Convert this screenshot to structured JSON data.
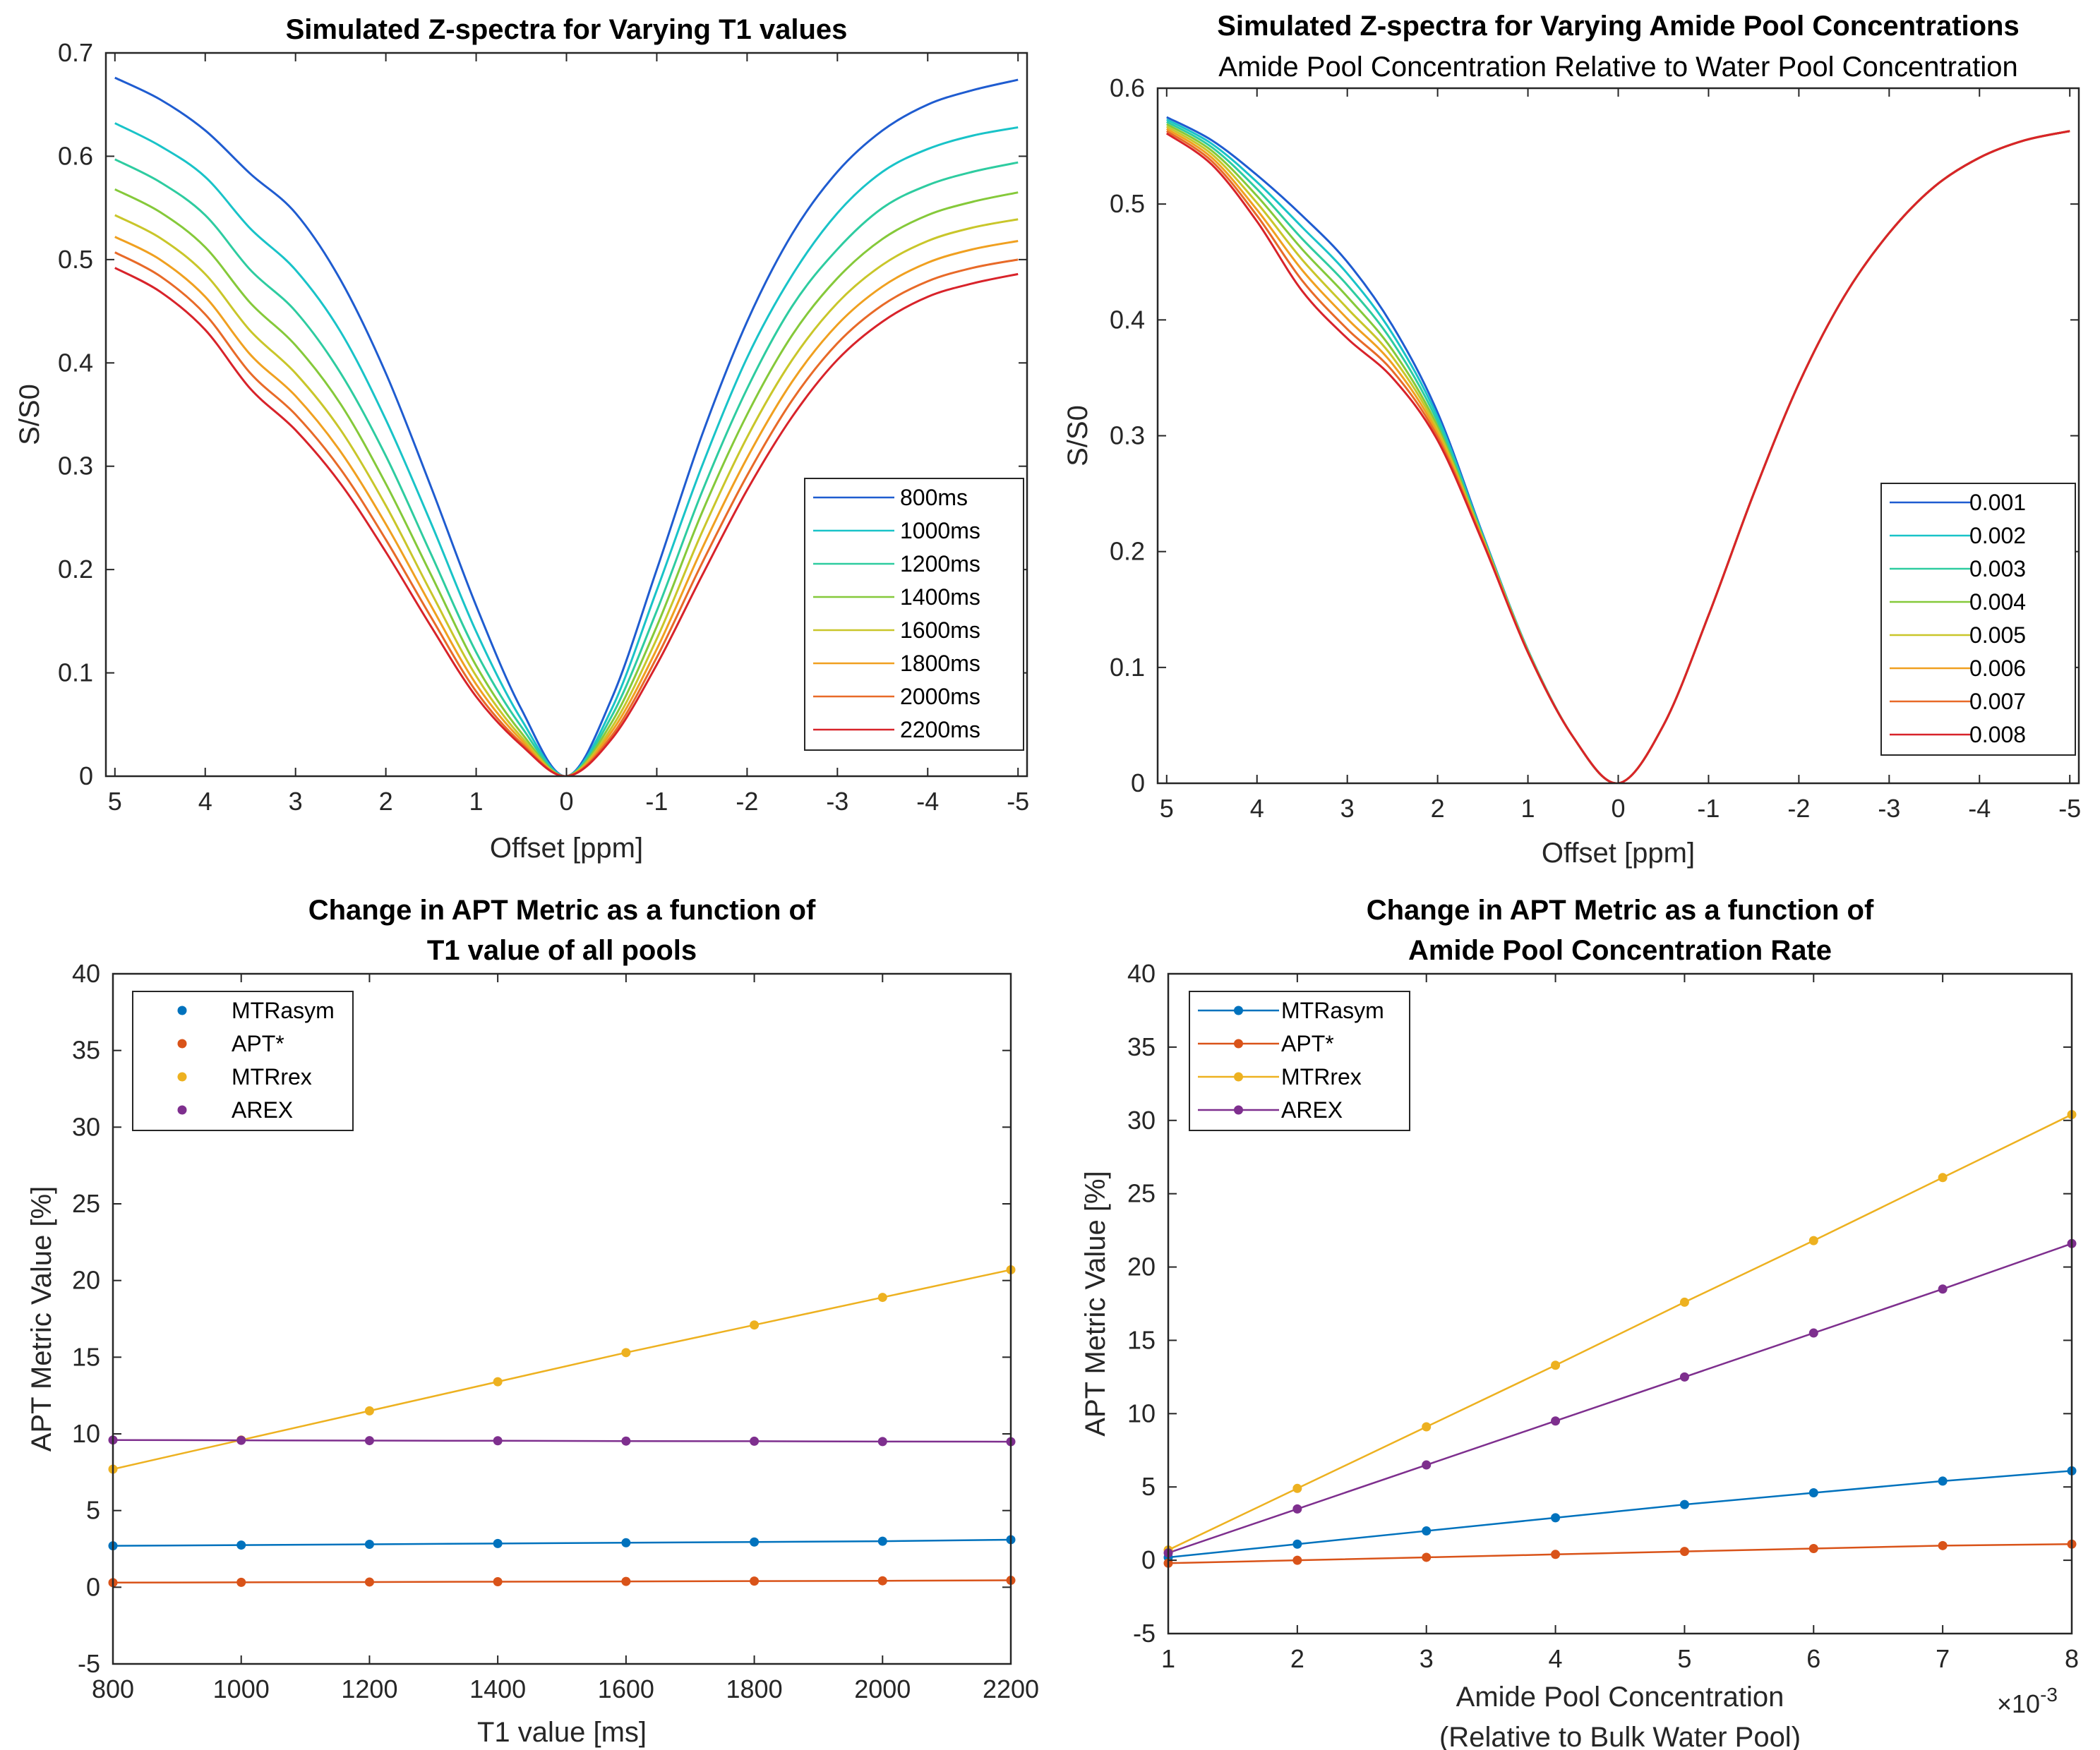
{
  "chart_data": [
    {
      "id": "p1",
      "type": "line",
      "title": "Simulated Z-spectra for Varying T1 values",
      "xlabel": "Offset [ppm]",
      "ylabel": "S/S0",
      "xlim": [
        5.1,
        -5.1
      ],
      "xticks": [
        5,
        4,
        3,
        2,
        1,
        0,
        -1,
        -2,
        -3,
        -4,
        -5
      ],
      "xtick_labels": [
        "5",
        "4",
        "3",
        "2",
        "1",
        "0",
        "-1",
        "-2",
        "-3",
        "-4",
        "-5"
      ],
      "ylim": [
        0,
        0.7
      ],
      "yticks": [
        0,
        0.1,
        0.2,
        0.3,
        0.4,
        0.5,
        0.6,
        0.7
      ],
      "ytick_labels": [
        "0",
        "0.1",
        "0.2",
        "0.3",
        "0.4",
        "0.5",
        "0.6",
        "0.7"
      ],
      "legend_position": "bottom-right",
      "x": [
        5.0,
        4.5,
        4.0,
        3.5,
        3.0,
        2.5,
        2.0,
        1.5,
        1.0,
        0.5,
        0.0,
        -0.5,
        -1.0,
        -1.5,
        -2.0,
        -2.5,
        -3.0,
        -3.5,
        -4.0,
        -4.5,
        -5.0
      ],
      "series": [
        {
          "name": "800ms",
          "color": "#1f5cd0",
          "values": [
            0.676,
            0.655,
            0.625,
            0.583,
            0.545,
            0.48,
            0.39,
            0.28,
            0.165,
            0.065,
            0.0,
            0.075,
            0.2,
            0.33,
            0.44,
            0.525,
            0.585,
            0.625,
            0.65,
            0.664,
            0.674
          ]
        },
        {
          "name": "1000ms",
          "color": "#19c3c8",
          "values": [
            0.632,
            0.61,
            0.58,
            0.53,
            0.49,
            0.43,
            0.345,
            0.245,
            0.14,
            0.055,
            0.0,
            0.065,
            0.18,
            0.3,
            0.405,
            0.485,
            0.545,
            0.585,
            0.607,
            0.62,
            0.628
          ]
        },
        {
          "name": "1200ms",
          "color": "#2ecca0",
          "values": [
            0.597,
            0.575,
            0.543,
            0.49,
            0.45,
            0.39,
            0.31,
            0.215,
            0.12,
            0.048,
            0.0,
            0.058,
            0.16,
            0.275,
            0.375,
            0.455,
            0.51,
            0.55,
            0.572,
            0.585,
            0.594
          ]
        },
        {
          "name": "1400ms",
          "color": "#85c93a",
          "values": [
            0.568,
            0.546,
            0.512,
            0.458,
            0.417,
            0.36,
            0.283,
            0.195,
            0.107,
            0.042,
            0.0,
            0.052,
            0.145,
            0.255,
            0.35,
            0.427,
            0.482,
            0.52,
            0.543,
            0.556,
            0.565
          ]
        },
        {
          "name": "1600ms",
          "color": "#c9c62a",
          "values": [
            0.543,
            0.521,
            0.486,
            0.431,
            0.39,
            0.335,
            0.262,
            0.178,
            0.097,
            0.038,
            0.0,
            0.047,
            0.133,
            0.236,
            0.328,
            0.403,
            0.458,
            0.495,
            0.518,
            0.531,
            0.539
          ]
        },
        {
          "name": "1800ms",
          "color": "#f0a020",
          "values": [
            0.522,
            0.5,
            0.464,
            0.408,
            0.368,
            0.314,
            0.244,
            0.165,
            0.089,
            0.035,
            0.0,
            0.043,
            0.123,
            0.22,
            0.308,
            0.382,
            0.437,
            0.474,
            0.497,
            0.51,
            0.518
          ]
        },
        {
          "name": "2000ms",
          "color": "#e86a28",
          "values": [
            0.507,
            0.484,
            0.447,
            0.39,
            0.35,
            0.297,
            0.229,
            0.154,
            0.082,
            0.032,
            0.0,
            0.039,
            0.115,
            0.206,
            0.291,
            0.364,
            0.419,
            0.456,
            0.479,
            0.492,
            0.5
          ]
        },
        {
          "name": "2200ms",
          "color": "#d8232a",
          "values": [
            0.492,
            0.469,
            0.432,
            0.375,
            0.335,
            0.283,
            0.217,
            0.145,
            0.077,
            0.03,
            0.0,
            0.036,
            0.108,
            0.194,
            0.277,
            0.348,
            0.403,
            0.44,
            0.464,
            0.477,
            0.486
          ]
        }
      ]
    },
    {
      "id": "p2",
      "type": "line",
      "title": "Simulated Z-spectra for Varying Amide Pool Concentrations",
      "subtitle": "Amide Pool Concentration Relative to Water Pool Concentration",
      "xlabel": "Offset [ppm]",
      "ylabel": "S/S0",
      "xlim": [
        5.1,
        -5.1
      ],
      "xticks": [
        5,
        4,
        3,
        2,
        1,
        0,
        -1,
        -2,
        -3,
        -4,
        -5
      ],
      "xtick_labels": [
        "5",
        "4",
        "3",
        "2",
        "1",
        "0",
        "-1",
        "-2",
        "-3",
        "-4",
        "-5"
      ],
      "ylim": [
        0,
        0.6
      ],
      "yticks": [
        0,
        0.1,
        0.2,
        0.3,
        0.4,
        0.5,
        0.6
      ],
      "ytick_labels": [
        "0",
        "0.1",
        "0.2",
        "0.3",
        "0.4",
        "0.5",
        "0.6"
      ],
      "legend_position": "bottom-right",
      "x": [
        5.0,
        4.5,
        4.0,
        3.5,
        3.0,
        2.5,
        2.0,
        1.5,
        1.0,
        0.5,
        0.0,
        -0.5,
        -1.0,
        -1.5,
        -2.0,
        -2.5,
        -3.0,
        -3.5,
        -4.0,
        -4.5,
        -5.0
      ],
      "series": [
        {
          "name": "0.001",
          "color": "#1f5cd0",
          "values": [
            0.575,
            0.555,
            0.525,
            0.49,
            0.45,
            0.395,
            0.32,
            0.215,
            0.115,
            0.04,
            0.0,
            0.05,
            0.145,
            0.25,
            0.345,
            0.42,
            0.475,
            0.515,
            0.54,
            0.555,
            0.563
          ]
        },
        {
          "name": "0.002",
          "color": "#19c3c8",
          "values": [
            0.573,
            0.552,
            0.519,
            0.48,
            0.44,
            0.388,
            0.316,
            0.214,
            0.115,
            0.04,
            0.0,
            0.05,
            0.145,
            0.25,
            0.345,
            0.42,
            0.475,
            0.515,
            0.54,
            0.555,
            0.563
          ]
        },
        {
          "name": "0.003",
          "color": "#2ecca0",
          "values": [
            0.571,
            0.549,
            0.513,
            0.47,
            0.43,
            0.381,
            0.312,
            0.213,
            0.114,
            0.04,
            0.0,
            0.05,
            0.145,
            0.25,
            0.345,
            0.42,
            0.475,
            0.515,
            0.54,
            0.555,
            0.563
          ]
        },
        {
          "name": "0.004",
          "color": "#85c93a",
          "values": [
            0.569,
            0.546,
            0.507,
            0.461,
            0.42,
            0.374,
            0.308,
            0.212,
            0.114,
            0.04,
            0.0,
            0.05,
            0.145,
            0.25,
            0.345,
            0.42,
            0.475,
            0.515,
            0.54,
            0.555,
            0.563
          ]
        },
        {
          "name": "0.005",
          "color": "#c9c62a",
          "values": [
            0.567,
            0.543,
            0.501,
            0.452,
            0.41,
            0.368,
            0.305,
            0.211,
            0.114,
            0.04,
            0.0,
            0.05,
            0.145,
            0.25,
            0.345,
            0.42,
            0.475,
            0.515,
            0.54,
            0.555,
            0.563
          ]
        },
        {
          "name": "0.006",
          "color": "#f0a020",
          "values": [
            0.565,
            0.54,
            0.495,
            0.443,
            0.401,
            0.362,
            0.302,
            0.21,
            0.113,
            0.04,
            0.0,
            0.05,
            0.145,
            0.25,
            0.345,
            0.42,
            0.475,
            0.515,
            0.54,
            0.555,
            0.563
          ]
        },
        {
          "name": "0.007",
          "color": "#e86a28",
          "values": [
            0.563,
            0.537,
            0.49,
            0.434,
            0.392,
            0.356,
            0.299,
            0.209,
            0.113,
            0.04,
            0.0,
            0.05,
            0.145,
            0.25,
            0.345,
            0.42,
            0.475,
            0.515,
            0.54,
            0.555,
            0.563
          ]
        },
        {
          "name": "0.008",
          "color": "#d8232a",
          "values": [
            0.561,
            0.534,
            0.485,
            0.425,
            0.384,
            0.35,
            0.296,
            0.208,
            0.113,
            0.04,
            0.0,
            0.05,
            0.145,
            0.25,
            0.345,
            0.42,
            0.475,
            0.515,
            0.54,
            0.555,
            0.563
          ]
        }
      ]
    },
    {
      "id": "p3",
      "type": "line",
      "title_lines": [
        "Change in APT Metric as a function of",
        "T1 value of all pools"
      ],
      "xlabel_lines": [
        "T1 value [ms]"
      ],
      "ylabel": "APT Metric Value [%]",
      "xlim": [
        800,
        2200
      ],
      "xticks": [
        800,
        1000,
        1200,
        1400,
        1600,
        1800,
        2000,
        2200
      ],
      "xtick_labels": [
        "800",
        "1000",
        "1200",
        "1400",
        "1600",
        "1800",
        "2000",
        "2200"
      ],
      "ylim": [
        -5,
        40
      ],
      "yticks": [
        -5,
        0,
        5,
        10,
        15,
        20,
        25,
        30,
        35,
        40
      ],
      "ytick_labels": [
        "-5",
        "0",
        "5",
        "10",
        "15",
        "20",
        "25",
        "30",
        "35",
        "40"
      ],
      "legend_position": "top-left",
      "legend_markers_only": true,
      "x": [
        800,
        1000,
        1200,
        1400,
        1600,
        1800,
        2000,
        2200
      ],
      "series": [
        {
          "name": "MTRasym",
          "color": "#0072BD",
          "values": [
            2.7,
            2.75,
            2.8,
            2.85,
            2.9,
            2.95,
            3.0,
            3.1
          ]
        },
        {
          "name": "APT*",
          "color": "#D95319",
          "values": [
            0.3,
            0.32,
            0.34,
            0.36,
            0.38,
            0.4,
            0.42,
            0.45
          ]
        },
        {
          "name": "MTRrex",
          "color": "#EDB120",
          "values": [
            7.7,
            9.6,
            11.5,
            13.4,
            15.3,
            17.1,
            18.9,
            20.7
          ]
        },
        {
          "name": "AREX",
          "color": "#7E2F8E",
          "values": [
            9.6,
            9.58,
            9.56,
            9.55,
            9.53,
            9.52,
            9.5,
            9.49
          ]
        }
      ]
    },
    {
      "id": "p4",
      "type": "line",
      "title_lines": [
        "Change in APT Metric as a function of",
        "Amide Pool Concentration Rate"
      ],
      "xlabel_lines": [
        "Amide Pool Concentration",
        "(Relative to Bulk Water Pool)"
      ],
      "ylabel": "APT Metric Value [%]",
      "exponent_label": "×10",
      "exponent_power": "-3",
      "xlim": [
        1,
        8
      ],
      "xticks": [
        1,
        2,
        3,
        4,
        5,
        6,
        7,
        8
      ],
      "xtick_labels": [
        "1",
        "2",
        "3",
        "4",
        "5",
        "6",
        "7",
        "8"
      ],
      "ylim": [
        -5,
        40
      ],
      "yticks": [
        -5,
        0,
        5,
        10,
        15,
        20,
        25,
        30,
        35,
        40
      ],
      "ytick_labels": [
        "-5",
        "0",
        "5",
        "10",
        "15",
        "20",
        "25",
        "30",
        "35",
        "40"
      ],
      "legend_position": "top-left",
      "legend_markers_only": false,
      "x": [
        1,
        2,
        3,
        4,
        5,
        6,
        7,
        8
      ],
      "series": [
        {
          "name": "MTRasym",
          "color": "#0072BD",
          "values": [
            0.2,
            1.1,
            2.0,
            2.9,
            3.8,
            4.6,
            5.4,
            6.1
          ]
        },
        {
          "name": "APT*",
          "color": "#D95319",
          "values": [
            -0.2,
            0.0,
            0.2,
            0.4,
            0.6,
            0.8,
            1.0,
            1.1
          ]
        },
        {
          "name": "MTRrex",
          "color": "#EDB120",
          "values": [
            0.7,
            4.9,
            9.1,
            13.3,
            17.6,
            21.8,
            26.1,
            30.4
          ]
        },
        {
          "name": "AREX",
          "color": "#7E2F8E",
          "values": [
            0.5,
            3.5,
            6.5,
            9.5,
            12.5,
            15.5,
            18.5,
            21.6
          ]
        }
      ]
    }
  ]
}
